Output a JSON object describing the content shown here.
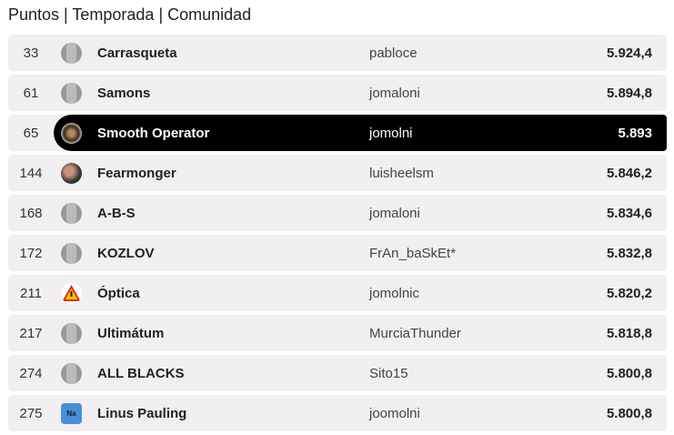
{
  "title": "Puntos | Temporada | Comunidad",
  "rows": [
    {
      "rank": "33",
      "name": "Carrasqueta",
      "user": "pabloce",
      "points": "5.924,4",
      "avatar": "default"
    },
    {
      "rank": "61",
      "name": "Samons",
      "user": "jomaloni",
      "points": "5.894,8",
      "avatar": "default"
    },
    {
      "rank": "65",
      "name": "Smooth Operator",
      "user": "jomolni",
      "points": "5.893",
      "avatar": "team",
      "highlighted": true
    },
    {
      "rank": "144",
      "name": "Fearmonger",
      "user": "luisheelsm",
      "points": "5.846,2",
      "avatar": "photo"
    },
    {
      "rank": "168",
      "name": "A-B-S",
      "user": "jomaloni",
      "points": "5.834,6",
      "avatar": "default"
    },
    {
      "rank": "172",
      "name": "KOZLOV",
      "user": "FrAn_baSkEt*",
      "points": "5.832,8",
      "avatar": "default"
    },
    {
      "rank": "211",
      "name": "Óptica",
      "user": "jomolnic",
      "points": "5.820,2",
      "avatar": "warn"
    },
    {
      "rank": "217",
      "name": "Ultimátum",
      "user": "MurciaThunder",
      "points": "5.818,8",
      "avatar": "default"
    },
    {
      "rank": "274",
      "name": "ALL BLACKS",
      "user": "Sito15",
      "points": "5.800,8",
      "avatar": "default"
    },
    {
      "rank": "275",
      "name": "Linus Pauling",
      "user": "joomolni",
      "points": "5.800,8",
      "avatar": "na",
      "avatar_text": "Na"
    }
  ],
  "colors": {
    "row_bg": "#f1eff0",
    "highlight_bg": "#000000"
  }
}
